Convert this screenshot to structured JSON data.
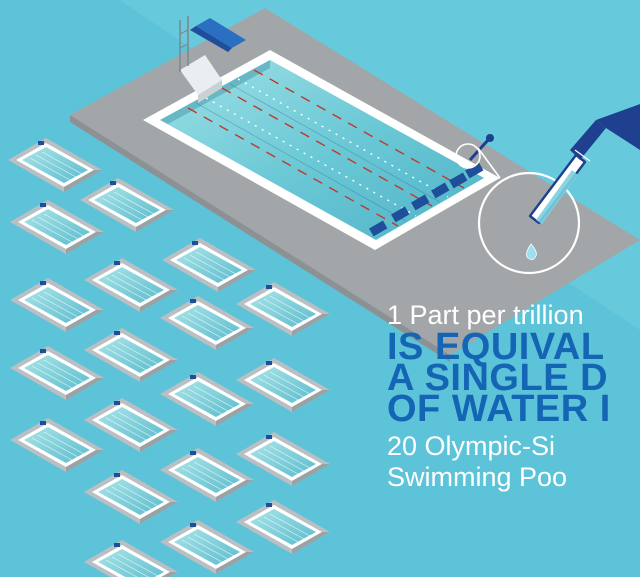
{
  "headline": {
    "line1": "1 Part per trillion",
    "line2": "IS EQUIVAL",
    "line3": "A SINGLE D",
    "line4": "OF WATER I",
    "line5": "20 Olympic-Si",
    "line6": "Swimming Poo"
  },
  "colors": {
    "background": "#5cc3d8",
    "headline": "#1565b5",
    "text": "#ffffff",
    "pool_water": "#7fd0dc",
    "lane_rope": "#c0392b",
    "starting_blocks": "#1f4f9a",
    "dropper": "#1f3f8f"
  },
  "illustration": {
    "pool_count": 20,
    "icons": [
      "large-swimming-pool",
      "diving-board-icon",
      "eyedropper-icon",
      "water-droplet-icon",
      "magnifier-circle-icon",
      "small-pool-icon"
    ]
  }
}
